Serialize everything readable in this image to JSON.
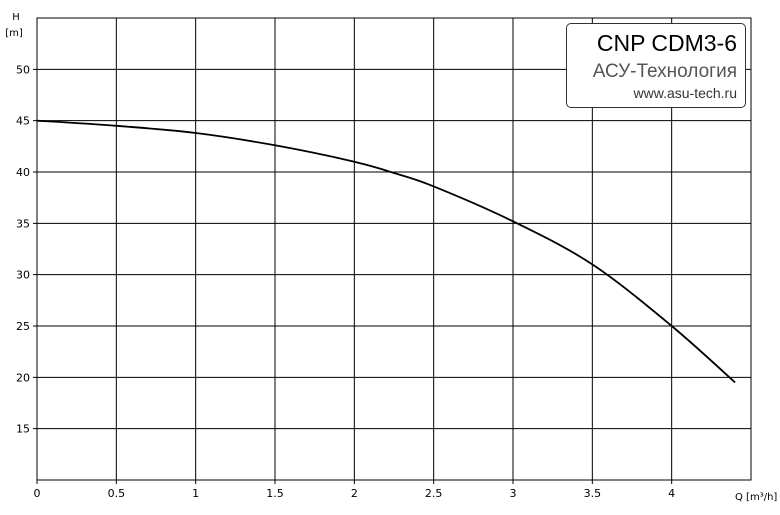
{
  "chart_data": {
    "type": "line",
    "xlabel": "Q [m³/h]",
    "ylabel": "H",
    "yunit": "[m]",
    "xlim": [
      0,
      4.5
    ],
    "ylim": [
      10,
      55
    ],
    "xticks": [
      "0",
      "0.5",
      "1",
      "1.5",
      "2",
      "2.5",
      "3",
      "3.5",
      "4"
    ],
    "yticks": [
      "15",
      "20",
      "25",
      "30",
      "35",
      "40",
      "45",
      "50"
    ],
    "grid": true,
    "series": [
      {
        "x": [
          0,
          0.5,
          1.0,
          1.5,
          2.0,
          2.25,
          2.5,
          3.0,
          3.5,
          4.0,
          4.4
        ],
        "y": [
          45.0,
          44.5,
          43.8,
          42.6,
          41.0,
          39.9,
          38.6,
          35.2,
          31.0,
          25.0,
          19.5
        ]
      }
    ]
  },
  "legend": {
    "title": "CNP CDM3-6",
    "company": "АСУ-Технология",
    "site": "www.asu-tech.ru"
  },
  "colors": {
    "curve": "#000000",
    "grid": "#000000",
    "company_text": "#555555"
  }
}
